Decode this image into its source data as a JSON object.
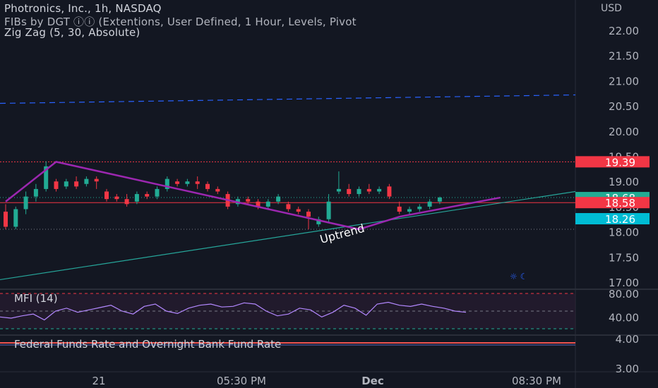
{
  "header": {
    "title": "Photronics, Inc., 1h, NASDAQ",
    "indicator_1": "FIBs by DGT ⓘⓘ (Extentions, User Defined, 1 Hour, Levels, Pivot",
    "indicator_2": "Zig Zag (5, 30, Absolute)",
    "currency": "USD"
  },
  "price_axis": {
    "ticks": [
      "22.00",
      "21.50",
      "21.00",
      "20.50",
      "20.00",
      "19.50",
      "19.00",
      "18.50",
      "18.00",
      "17.50",
      "17.00"
    ],
    "badges": [
      {
        "value": "19.39",
        "color": "#f23645"
      },
      {
        "value": "18.68",
        "color": "#22ab94"
      },
      {
        "value": "18.58",
        "color": "#f23645"
      },
      {
        "value": "18.26",
        "color": "#00bcd4"
      }
    ]
  },
  "mfi": {
    "label": "MFI (14)",
    "ticks": [
      "80.00",
      "40.00"
    ]
  },
  "lower_pane": {
    "label": "Federal Funds Rate and Overnight Bank Fund Rate",
    "ticks": [
      "4.00",
      "3.00"
    ]
  },
  "time_axis": {
    "labels": [
      "21",
      "05:30 PM",
      "Dec",
      "08:30 PM"
    ]
  },
  "annotations": {
    "uptrend": "Uptrend",
    "eye_symbol": "☼ ☾"
  },
  "colors": {
    "background": "#131722",
    "up": "#22ab94",
    "down": "#f23645",
    "zigzag": "#9c27b0",
    "trendline": "#26a69a",
    "mfi_line": "#b388ff",
    "fed_line": "#ef5350",
    "dashed_blue": "#2962ff"
  },
  "chart_data": {
    "type": "candlestick",
    "price_ylim": [
      16.9,
      22.3
    ],
    "levels": {
      "red_top": 19.39,
      "green_dotted": 18.68,
      "red_mid": 18.58,
      "low_dotted": 18.05,
      "blue_dashed": 20.55
    },
    "candles": [
      {
        "o": 18.4,
        "h": 18.55,
        "c": 18.1,
        "l": 18.05
      },
      {
        "o": 18.1,
        "h": 18.5,
        "c": 18.45,
        "l": 18.05
      },
      {
        "o": 18.45,
        "h": 18.8,
        "c": 18.7,
        "l": 18.35
      },
      {
        "o": 18.7,
        "h": 18.95,
        "c": 18.85,
        "l": 18.6
      },
      {
        "o": 18.85,
        "h": 19.4,
        "c": 19.3,
        "l": 18.8
      },
      {
        "o": 19.0,
        "h": 19.05,
        "c": 18.85,
        "l": 18.8
      },
      {
        "o": 18.9,
        "h": 19.05,
        "c": 19.0,
        "l": 18.85
      },
      {
        "o": 19.0,
        "h": 19.1,
        "c": 18.9,
        "l": 18.85
      },
      {
        "o": 18.95,
        "h": 19.1,
        "c": 19.05,
        "l": 18.9
      },
      {
        "o": 19.05,
        "h": 19.1,
        "c": 19.0,
        "l": 18.85
      },
      {
        "o": 18.8,
        "h": 18.85,
        "c": 18.65,
        "l": 18.6
      },
      {
        "o": 18.7,
        "h": 18.75,
        "c": 18.65,
        "l": 18.6
      },
      {
        "o": 18.65,
        "h": 18.75,
        "c": 18.55,
        "l": 18.5
      },
      {
        "o": 18.6,
        "h": 18.8,
        "c": 18.75,
        "l": 18.55
      },
      {
        "o": 18.75,
        "h": 18.8,
        "c": 18.7,
        "l": 18.65
      },
      {
        "o": 18.7,
        "h": 18.9,
        "c": 18.85,
        "l": 18.65
      },
      {
        "o": 18.85,
        "h": 19.1,
        "c": 19.05,
        "l": 18.8
      },
      {
        "o": 19.0,
        "h": 19.05,
        "c": 18.95,
        "l": 18.9
      },
      {
        "o": 18.95,
        "h": 19.05,
        "c": 19.0,
        "l": 18.9
      },
      {
        "o": 19.0,
        "h": 19.1,
        "c": 18.95,
        "l": 18.85
      },
      {
        "o": 18.95,
        "h": 19.0,
        "c": 18.85,
        "l": 18.8
      },
      {
        "o": 18.85,
        "h": 18.9,
        "c": 18.8,
        "l": 18.75
      },
      {
        "o": 18.75,
        "h": 18.8,
        "c": 18.5,
        "l": 18.45
      },
      {
        "o": 18.55,
        "h": 18.7,
        "c": 18.65,
        "l": 18.5
      },
      {
        "o": 18.65,
        "h": 18.7,
        "c": 18.6,
        "l": 18.55
      },
      {
        "o": 18.6,
        "h": 18.65,
        "c": 18.5,
        "l": 18.45
      },
      {
        "o": 18.5,
        "h": 18.65,
        "c": 18.6,
        "l": 18.45
      },
      {
        "o": 18.6,
        "h": 18.75,
        "c": 18.7,
        "l": 18.55
      },
      {
        "o": 18.55,
        "h": 18.6,
        "c": 18.45,
        "l": 18.4
      },
      {
        "o": 18.45,
        "h": 18.5,
        "c": 18.4,
        "l": 18.35
      },
      {
        "o": 18.4,
        "h": 18.45,
        "c": 18.3,
        "l": 18.05
      },
      {
        "o": 18.15,
        "h": 18.3,
        "c": 18.25,
        "l": 18.1
      },
      {
        "o": 18.25,
        "h": 18.75,
        "c": 18.6,
        "l": 18.2
      },
      {
        "o": 18.8,
        "h": 19.2,
        "c": 18.85,
        "l": 18.75
      },
      {
        "o": 18.85,
        "h": 18.95,
        "c": 18.75,
        "l": 18.7
      },
      {
        "o": 18.75,
        "h": 18.9,
        "c": 18.85,
        "l": 18.7
      },
      {
        "o": 18.85,
        "h": 18.95,
        "c": 18.8,
        "l": 18.75
      },
      {
        "o": 18.8,
        "h": 18.9,
        "c": 18.85,
        "l": 18.75
      },
      {
        "o": 18.9,
        "h": 18.95,
        "c": 18.7,
        "l": 18.65
      },
      {
        "o": 18.5,
        "h": 18.6,
        "c": 18.4,
        "l": 18.35
      },
      {
        "o": 18.4,
        "h": 18.5,
        "c": 18.45,
        "l": 18.35
      },
      {
        "o": 18.45,
        "h": 18.55,
        "c": 18.5,
        "l": 18.4
      },
      {
        "o": 18.5,
        "h": 18.65,
        "c": 18.6,
        "l": 18.45
      },
      {
        "o": 18.6,
        "h": 18.7,
        "c": 18.68,
        "l": 18.55
      }
    ],
    "zigzag": [
      [
        0,
        18.6
      ],
      [
        5,
        19.39
      ],
      [
        35,
        18.05
      ],
      [
        39,
        18.3
      ],
      [
        49,
        18.68
      ]
    ],
    "trendline": [
      [
        0,
        17.05
      ],
      [
        55,
        18.8
      ]
    ],
    "mfi_ylim": [
      25,
      90
    ],
    "mfi_bands": [
      80,
      40,
      20
    ],
    "mfi": [
      40,
      38,
      42,
      45,
      35,
      50,
      55,
      48,
      52,
      56,
      60,
      50,
      45,
      58,
      62,
      50,
      46,
      55,
      60,
      62,
      57,
      58,
      64,
      62,
      50,
      42,
      45,
      55,
      52,
      40,
      48,
      60,
      55,
      43,
      62,
      65,
      60,
      58,
      62,
      58,
      55,
      50,
      48
    ]
  }
}
